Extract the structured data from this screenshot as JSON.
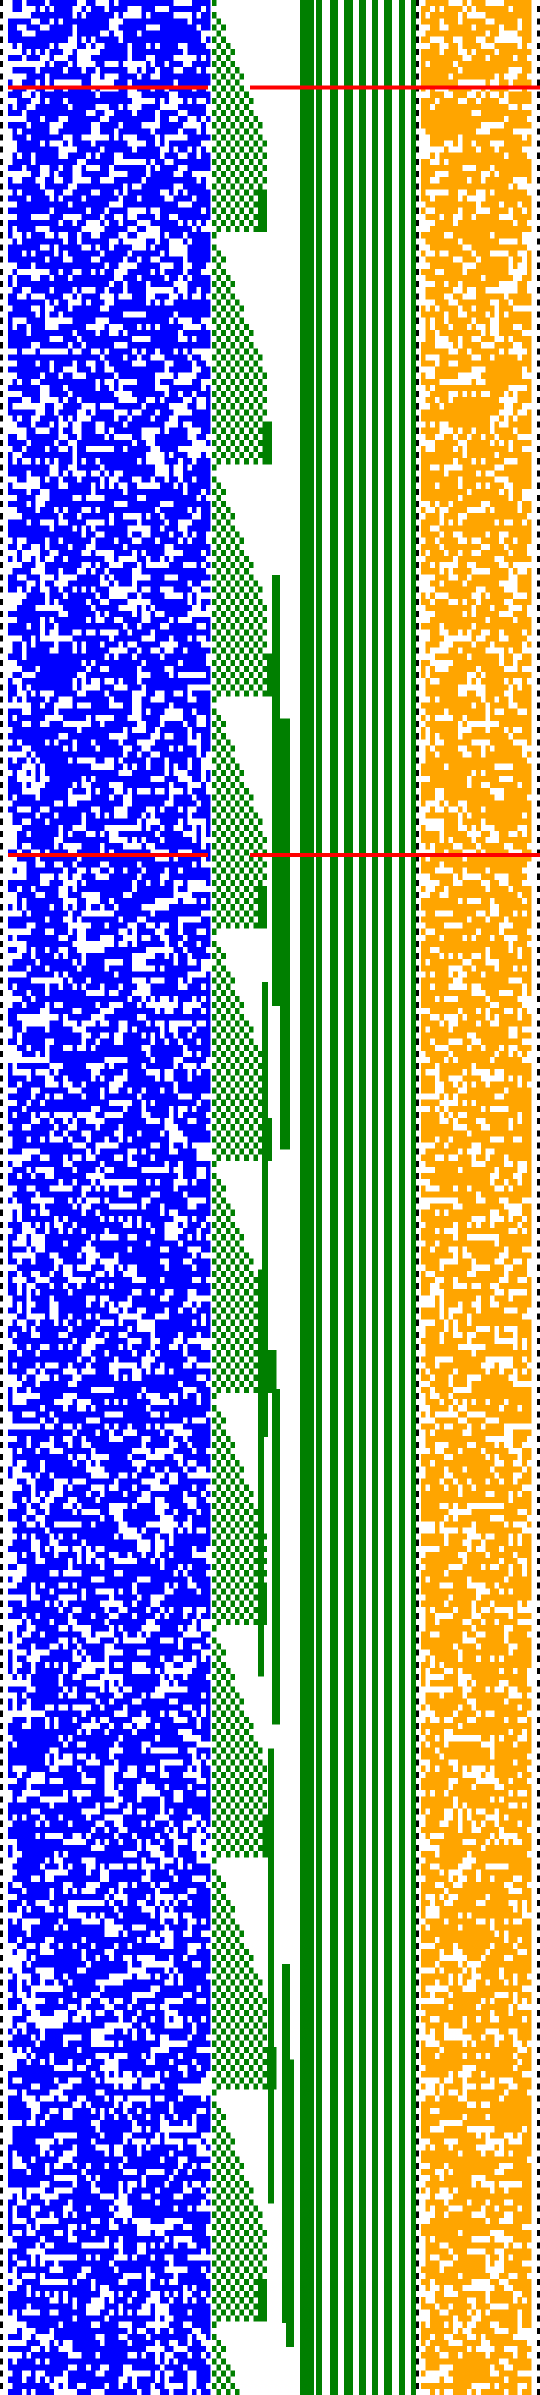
{
  "diagram": {
    "description_free": true,
    "rows": 392,
    "columns": {
      "ruler": {
        "cells": 1,
        "color": "#000000"
      },
      "blue_block": {
        "cells": 44,
        "color": "#0000ff",
        "density": 0.52
      },
      "green_block": {
        "cells": 44,
        "color": "#007f00"
      },
      "orange_block": {
        "cells": 24,
        "color": "#ffa500",
        "density": 0.56
      }
    },
    "markers": {
      "color": "#ff0000",
      "row_fractions": [
        0.0365,
        0.357
      ]
    },
    "background": "#ffffff"
  }
}
